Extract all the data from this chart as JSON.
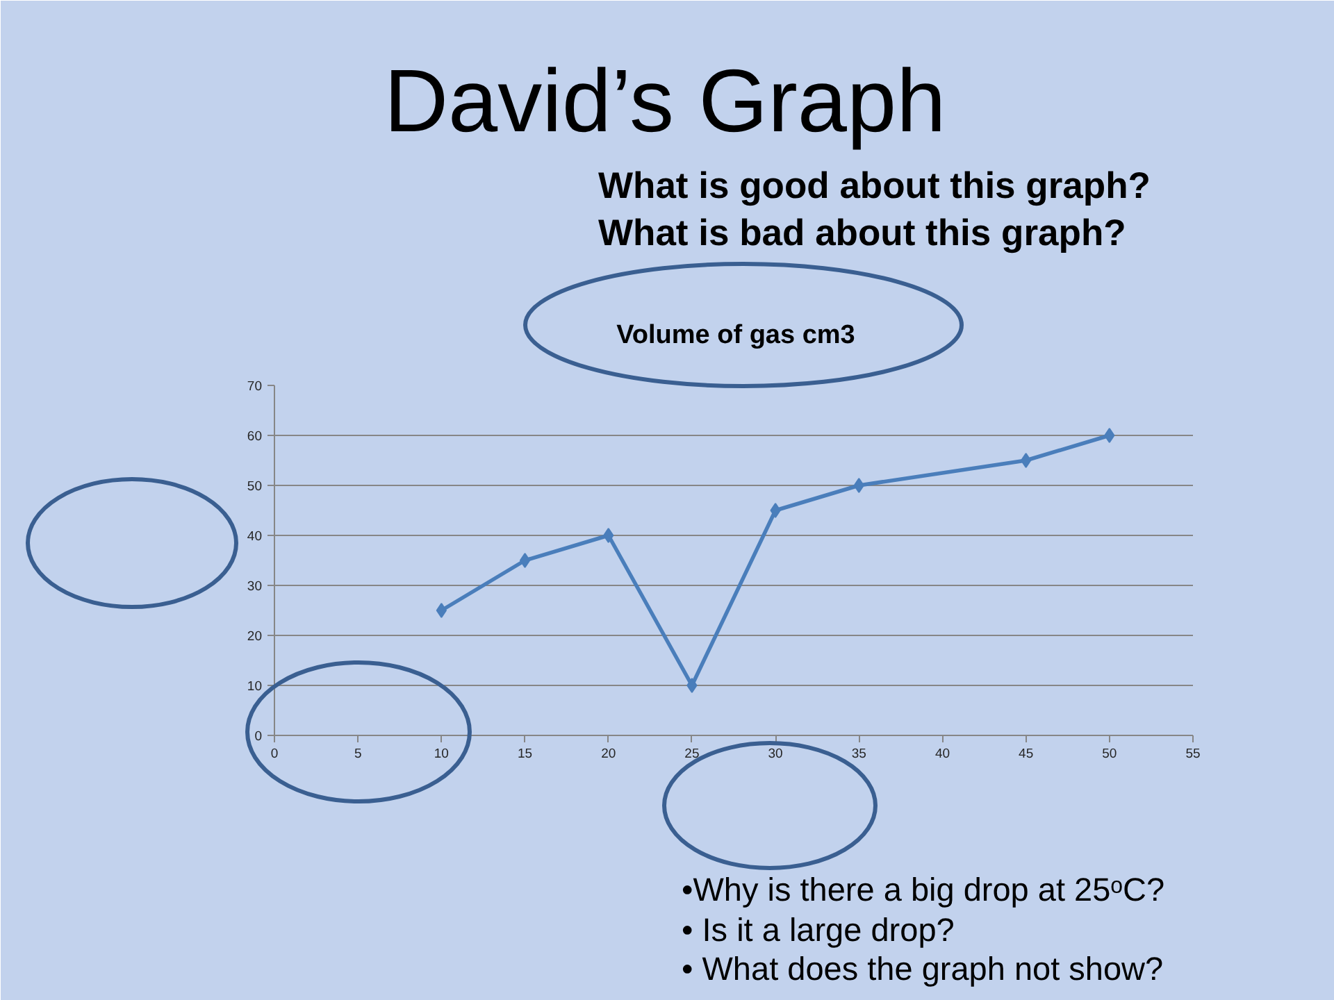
{
  "chart_data": {
    "type": "line",
    "title": "David’s Graph",
    "subtitle": "Volume of gas cm3",
    "x": [
      10,
      15,
      20,
      25,
      30,
      35,
      45,
      50
    ],
    "series": [
      {
        "color": "#4a7ebb",
        "values": [
          25,
          35,
          40,
          10,
          45,
          50,
          55,
          60
        ]
      }
    ],
    "xlim": [
      0,
      55
    ],
    "ylim": [
      0,
      70
    ],
    "xticks": [
      0,
      5,
      10,
      15,
      20,
      25,
      30,
      35,
      40,
      45,
      50,
      55
    ],
    "yticks": [
      0,
      10,
      20,
      30,
      40,
      50,
      60,
      70
    ],
    "grid": "y",
    "marker": "diamond",
    "line_style": "solid",
    "annotations": [
      "What is good about this graph?",
      "What is bad about this graph?",
      "•Why is there a big drop at 25ᵒC?",
      "• Is it a large drop?",
      "• What does the graph not show?"
    ]
  }
}
